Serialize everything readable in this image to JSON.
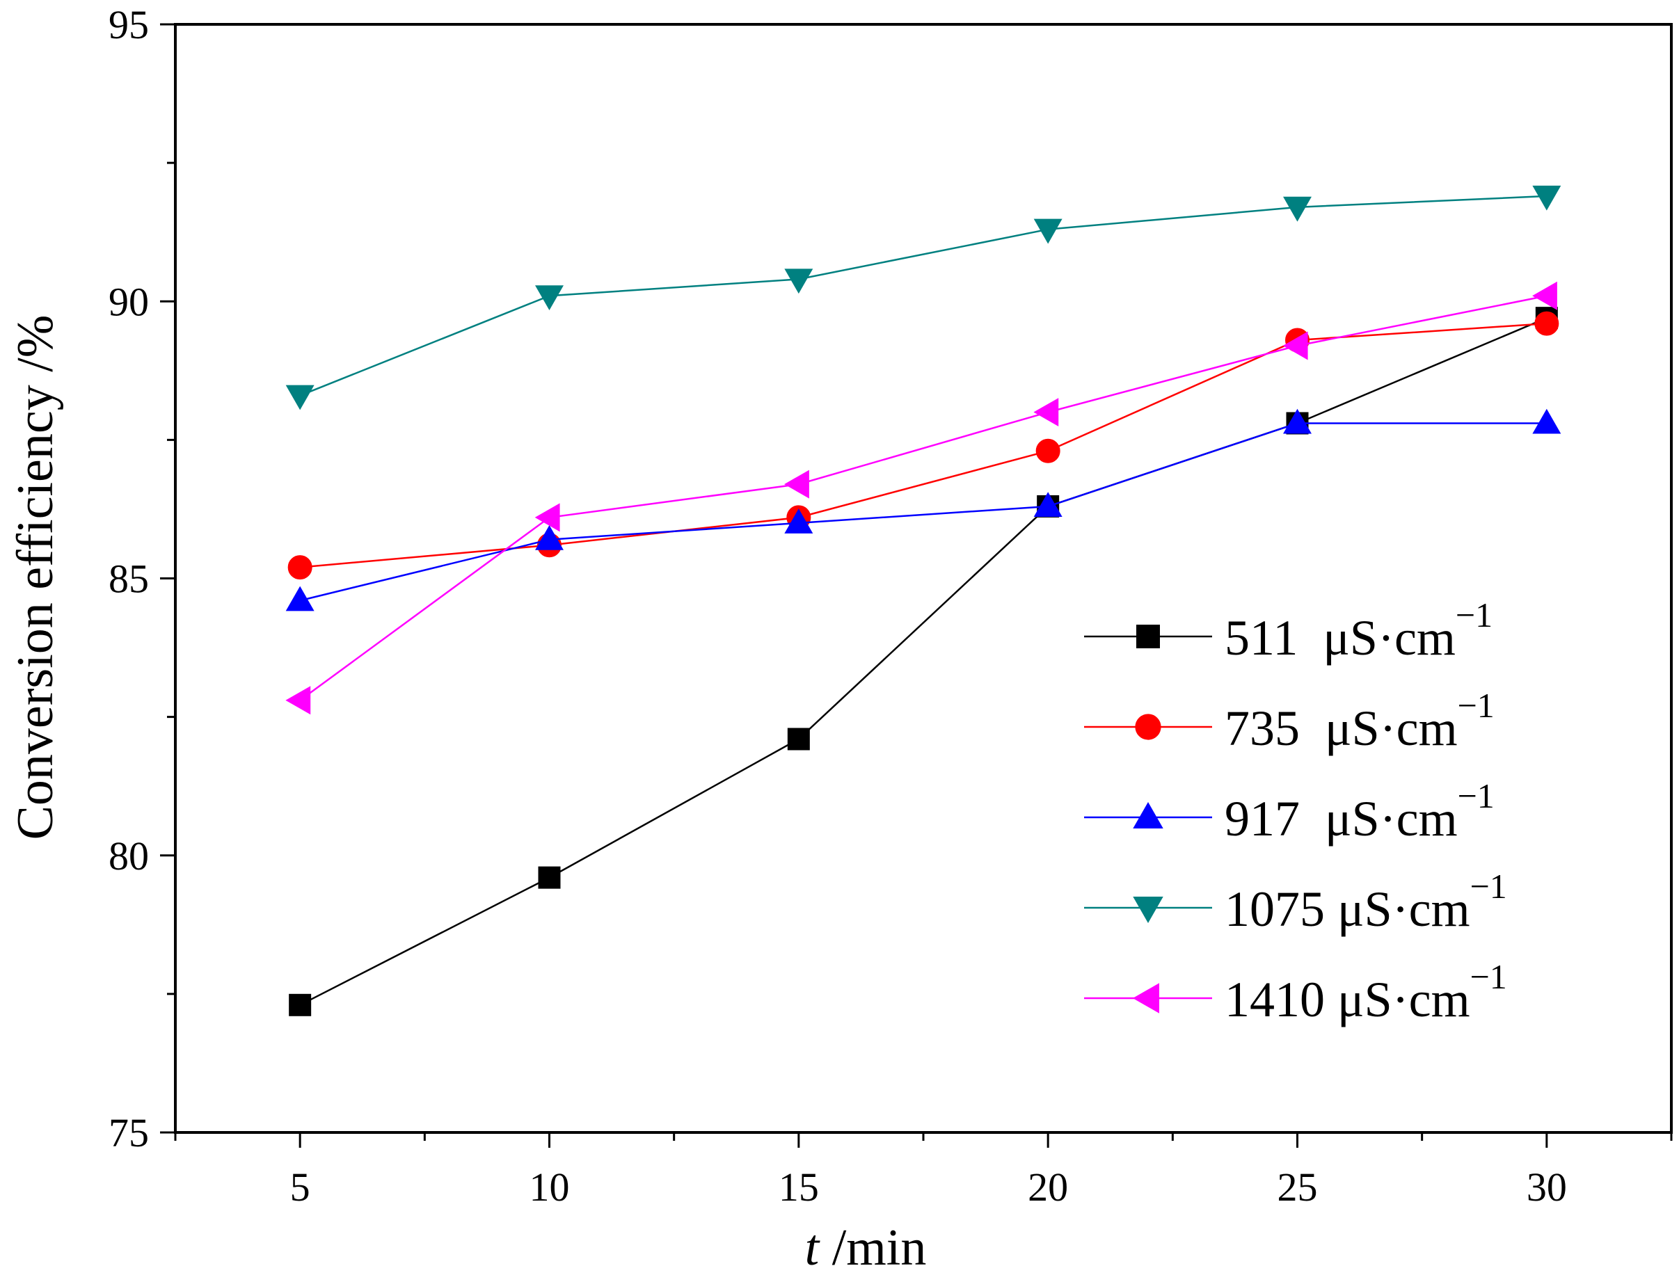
{
  "chart_data": {
    "type": "line",
    "title": "",
    "xlabel_italic": "t",
    "xlabel_rest": " /min",
    "ylabel": "Conversion efficiency /%",
    "xlim": [
      2.5,
      32.5
    ],
    "ylim": [
      75,
      95
    ],
    "x_ticks": [
      5,
      10,
      15,
      20,
      25,
      30
    ],
    "y_ticks": [
      75,
      80,
      85,
      90,
      95
    ],
    "x": [
      5,
      10,
      15,
      20,
      25,
      30
    ],
    "legend_position": "right",
    "series": [
      {
        "name": "511  μS·cm",
        "sup": "−1",
        "color": "#000000",
        "marker": "square",
        "values": [
          77.3,
          79.6,
          82.1,
          86.3,
          87.8,
          89.7
        ]
      },
      {
        "name": "735  μS·cm",
        "sup": "−1",
        "color": "#ff0000",
        "marker": "circle",
        "values": [
          85.2,
          85.6,
          86.1,
          87.3,
          89.3,
          89.6
        ]
      },
      {
        "name": "917  μS·cm",
        "sup": "−1",
        "color": "#0000ff",
        "marker": "triangle-up",
        "values": [
          84.6,
          85.7,
          86.0,
          86.3,
          87.8,
          87.8
        ]
      },
      {
        "name": "1075 μS·cm",
        "sup": "−1",
        "color": "#008080",
        "marker": "triangle-down",
        "values": [
          88.3,
          90.1,
          90.4,
          91.3,
          91.7,
          91.9
        ]
      },
      {
        "name": "1410 μS·cm",
        "sup": "−1",
        "color": "#ff00ff",
        "marker": "triangle-left",
        "values": [
          82.8,
          86.1,
          86.7,
          88.0,
          89.2,
          90.1
        ]
      }
    ]
  }
}
